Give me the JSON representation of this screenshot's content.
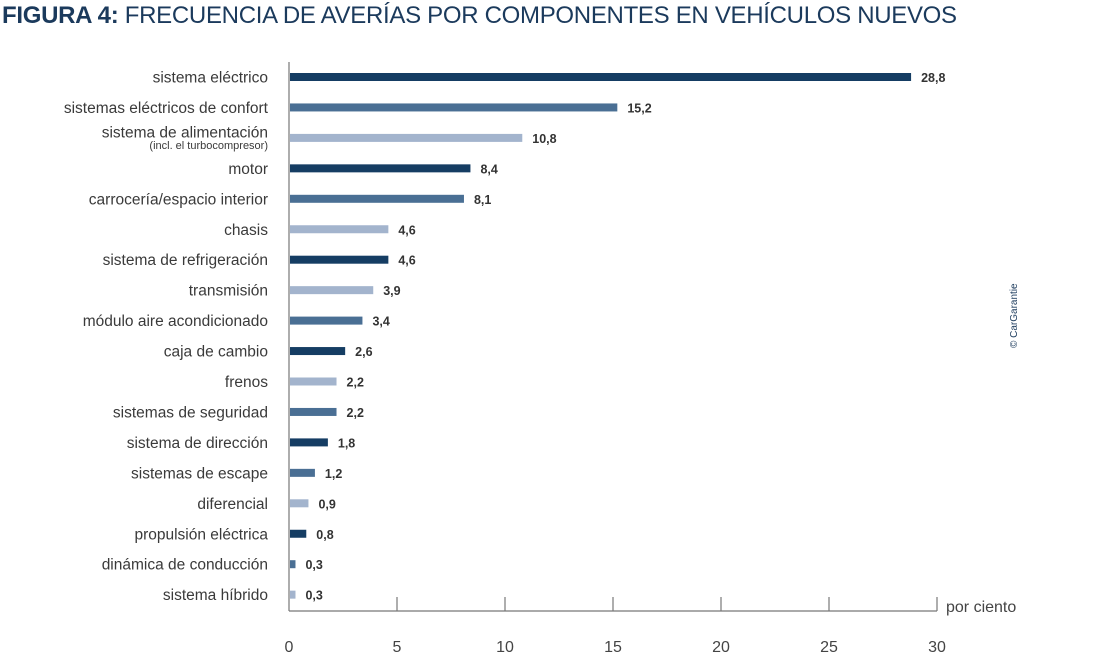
{
  "header": {
    "title_prefix": "FIGURA 4:",
    "title_rest": " FRECUENCIA DE AVERÍAS POR COMPONENTES EN VEHÍCULOS NUEVOS"
  },
  "credit": "© CarGarantie",
  "colors": {
    "title": "#1b3a5c",
    "dark": "#153d63",
    "mid": "#4a6f94",
    "light": "#a3b4cd",
    "axis": "#777777"
  },
  "chart_data": {
    "type": "bar",
    "orientation": "horizontal",
    "title": "FIGURA 4: FRECUENCIA DE AVERÍAS POR COMPONENTES EN VEHÍCULOS NUEVOS",
    "xlabel": "por ciento",
    "ylabel": "",
    "xlim": [
      0,
      30
    ],
    "xticks": [
      0,
      5,
      10,
      15,
      20,
      25,
      30
    ],
    "grid": false,
    "legend": "none",
    "categories": [
      "sistema eléctrico",
      "sistemas eléctricos de confort",
      "sistema de alimentación",
      "motor",
      "carrocería/espacio interior",
      "chasis",
      "sistema de refrigeración",
      "transmisión",
      "módulo aire acondicionado",
      "caja de cambio",
      "frenos",
      "sistemas de seguridad",
      "sistema de dirección",
      "sistemas de escape",
      "diferencial",
      "propulsión eléctrica",
      "dinámica de conducción",
      "sistema híbrido"
    ],
    "category_sublabels": [
      "",
      "",
      "(incl. el turbocompresor)",
      "",
      "",
      "",
      "",
      "",
      "",
      "",
      "",
      "",
      "",
      "",
      "",
      "",
      "",
      ""
    ],
    "values": [
      28.8,
      15.2,
      10.8,
      8.4,
      8.1,
      4.6,
      4.6,
      3.9,
      3.4,
      2.6,
      2.2,
      2.2,
      1.8,
      1.2,
      0.9,
      0.8,
      0.3,
      0.3
    ],
    "value_labels": [
      "28,8",
      "15,2",
      "10,8",
      "8,4",
      "8,1",
      "4,6",
      "4,6",
      "3,9",
      "3,4",
      "2,6",
      "2,2",
      "2,2",
      "1,8",
      "1,2",
      "0,9",
      "0,8",
      "0,3",
      "0,3"
    ],
    "bar_colors": [
      "dark",
      "mid",
      "light",
      "dark",
      "mid",
      "light",
      "dark",
      "light",
      "mid",
      "dark",
      "light",
      "mid",
      "dark",
      "mid",
      "light",
      "dark",
      "mid",
      "light"
    ]
  }
}
